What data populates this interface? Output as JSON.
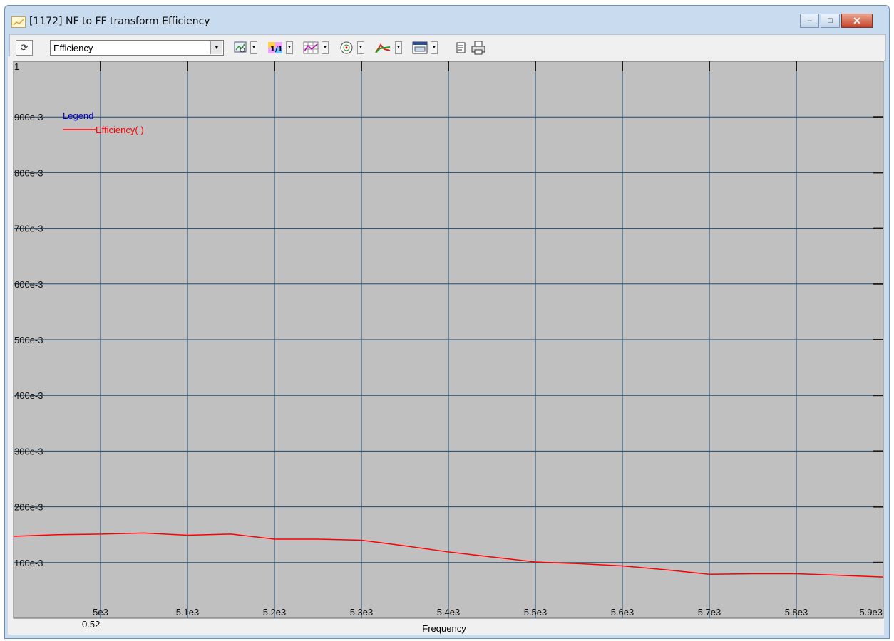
{
  "window": {
    "title": "[1172] NF to FF transform Efficiency",
    "controls": {
      "minimize": "–",
      "maximize": "□",
      "close": "✕"
    }
  },
  "toolbar": {
    "selector_value": "Efficiency",
    "icons": [
      "cursor-icon",
      "zoom-icon",
      "scale-icon",
      "grid-icon",
      "target-icon",
      "curve-icon",
      "display-icon",
      "copy-icon",
      "print-icon"
    ]
  },
  "chart_data": {
    "type": "line",
    "xlabel": "Frequency",
    "ylabel": "",
    "xlim": [
      4900,
      5900
    ],
    "ylim": [
      0,
      1
    ],
    "x_tick_values": [
      5000,
      5100,
      5200,
      5300,
      5400,
      5500,
      5600,
      5700,
      5800,
      5900
    ],
    "x_tick_labels": [
      "5e3",
      "5.1e3",
      "5.2e3",
      "5.3e3",
      "5.4e3",
      "5.5e3",
      "5.6e3",
      "5.7e3",
      "5.8e3",
      "5.9e3"
    ],
    "y_tick_values": [
      1,
      0.9,
      0.8,
      0.7,
      0.6,
      0.5,
      0.4,
      0.3,
      0.2,
      0.1
    ],
    "y_tick_labels": [
      "1",
      "900e-3",
      "800e-3",
      "700e-3",
      "600e-3",
      "500e-3",
      "400e-3",
      "300e-3",
      "200e-3",
      "100e-3"
    ],
    "grid": true,
    "legend": {
      "title": "Legend",
      "position": "top-left"
    },
    "cursor_readout": "0.52",
    "background_color": "#c0c0c0",
    "grid_color": "#1e4a6e",
    "series": [
      {
        "name": "Efficiency( )",
        "color": "#ff0000",
        "x": [
          4900,
          4950,
          5000,
          5050,
          5100,
          5150,
          5200,
          5250,
          5300,
          5350,
          5400,
          5450,
          5500,
          5550,
          5600,
          5650,
          5700,
          5750,
          5800,
          5850,
          5900
        ],
        "y": [
          0.147,
          0.15,
          0.151,
          0.153,
          0.149,
          0.151,
          0.142,
          0.142,
          0.14,
          0.13,
          0.119,
          0.11,
          0.101,
          0.098,
          0.094,
          0.087,
          0.079,
          0.08,
          0.08,
          0.077,
          0.074
        ]
      }
    ]
  }
}
